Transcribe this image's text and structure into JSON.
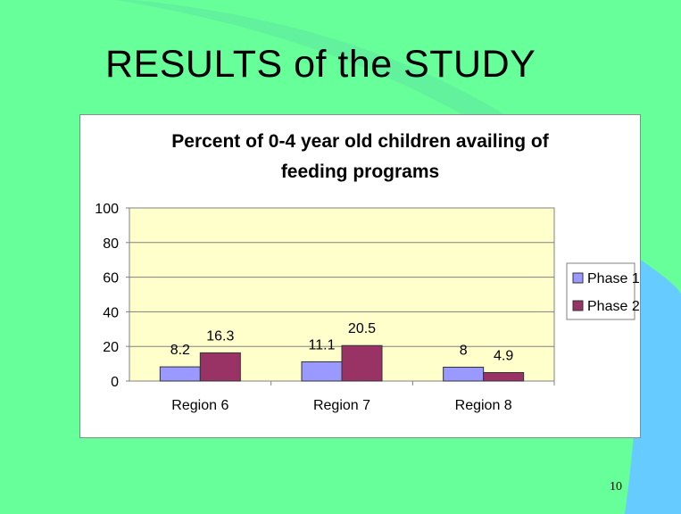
{
  "slide": {
    "title": "RESULTS of the STUDY",
    "page_number": "10",
    "colors": {
      "background": "#66ff99",
      "accent": "#66ccff"
    }
  },
  "chart_data": {
    "type": "bar",
    "title_lines": [
      "Percent of 0-4 year old children availing of",
      "feeding programs"
    ],
    "categories": [
      "Region 6",
      "Region 7",
      "Region 8"
    ],
    "series": [
      {
        "name": "Phase 1",
        "values": [
          8.2,
          11.1,
          8
        ],
        "labels": [
          "8.2",
          "11.1",
          "8"
        ],
        "color": "#9999ff"
      },
      {
        "name": "Phase 2",
        "values": [
          16.3,
          20.5,
          4.9
        ],
        "labels": [
          "16.3",
          "20.5",
          "4.9"
        ],
        "color": "#993366"
      }
    ],
    "ylim": [
      0,
      100
    ],
    "yticks": [
      0,
      20,
      40,
      60,
      80,
      100
    ],
    "ytick_labels": [
      "0",
      "20",
      "40",
      "60",
      "80",
      "100"
    ],
    "grid": true,
    "legend_position": "right",
    "plot_background": "#ffffcc"
  }
}
